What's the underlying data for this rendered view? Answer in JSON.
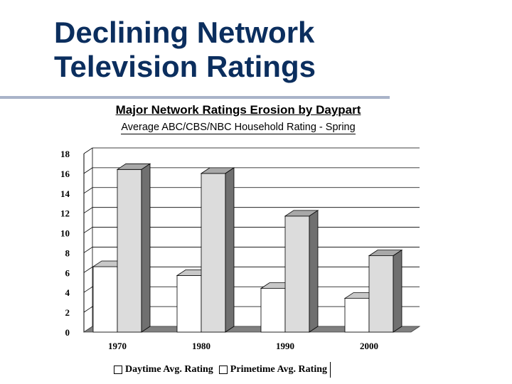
{
  "slide": {
    "title_line1": "Declining Network",
    "title_line2": "Television Ratings"
  },
  "chart_data": {
    "type": "bar",
    "title": "Major Network Ratings Erosion by Daypart",
    "subtitle": "Average ABC/CBS/NBC Household Rating - Spring",
    "categories": [
      "1970",
      "1980",
      "1990",
      "2000"
    ],
    "series": [
      {
        "name": "Daytime Avg. Rating",
        "values": [
          6.6,
          5.7,
          4.4,
          3.4
        ],
        "color": "#ffffff"
      },
      {
        "name": "Primetime Avg. Rating",
        "values": [
          16.4,
          16.0,
          11.7,
          7.7
        ],
        "color": "#dcdcdc"
      }
    ],
    "ylim": [
      0,
      18
    ],
    "yticks": [
      "0",
      "2",
      "4",
      "6",
      "8",
      "10",
      "12",
      "14",
      "16",
      "18"
    ],
    "grid": true,
    "legend_position": "bottom",
    "xlabel": "",
    "ylabel": ""
  }
}
